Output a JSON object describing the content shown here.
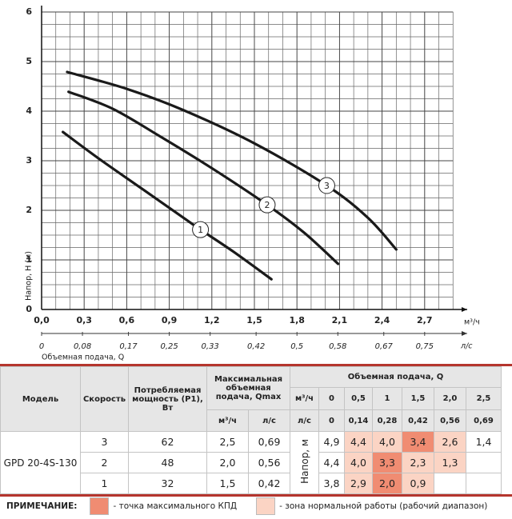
{
  "chart_data": {
    "type": "line",
    "y_label": "Напор, H (м)",
    "x_label": "Объемная подача, Q",
    "x_unit": "м³/ч",
    "x2_unit": "л/с",
    "xlim": [
      0,
      3.0
    ],
    "xticks": [
      {
        "value": 0,
        "label": "0,0"
      },
      {
        "value": 0.3,
        "label": "0,3"
      },
      {
        "value": 0.6,
        "label": "0,6"
      },
      {
        "value": 0.9,
        "label": "0,9"
      },
      {
        "value": 1.2,
        "label": "1,2"
      },
      {
        "value": 1.5,
        "label": "1,5"
      },
      {
        "value": 1.8,
        "label": "1,8"
      },
      {
        "value": 2.1,
        "label": "2,1"
      },
      {
        "value": 2.4,
        "label": "2,4"
      },
      {
        "value": 2.7,
        "label": "2,7"
      }
    ],
    "x2lim": [
      0,
      0.8333
    ],
    "x2ticks": [
      0,
      {
        "value": 0.08,
        "label": "0,08"
      },
      {
        "value": 0.17,
        "label": "0,17"
      },
      {
        "value": 0.25,
        "label": "0,25"
      },
      {
        "value": 0.33,
        "label": "0,33"
      },
      {
        "value": 0.42,
        "label": "0,42"
      },
      {
        "value": 0.5,
        "label": "0,5"
      },
      {
        "value": 0.58,
        "label": "0,58"
      },
      {
        "value": 0.67,
        "label": "0,67"
      },
      {
        "value": 0.75,
        "label": "0,75"
      }
    ],
    "ylim": [
      0,
      6
    ],
    "yticks": [
      0,
      1,
      2,
      3,
      4,
      5,
      6
    ],
    "grid": true,
    "series": [
      {
        "name": "1",
        "color": "#1a1a1a",
        "x": [
          0.15,
          0.4,
          0.7,
          1.0,
          1.12,
          1.35,
          1.62
        ],
        "values": [
          3.58,
          3.05,
          2.45,
          1.85,
          1.61,
          1.17,
          0.61
        ]
      },
      {
        "name": "2",
        "color": "#1a1a1a",
        "x": [
          0.19,
          0.5,
          0.83,
          1.2,
          1.59,
          1.85,
          2.09
        ],
        "values": [
          4.39,
          4.05,
          3.5,
          2.85,
          2.11,
          1.55,
          0.92
        ]
      },
      {
        "name": "3",
        "color": "#1a1a1a",
        "x": [
          0.18,
          0.6,
          1.0,
          1.5,
          2.01,
          2.3,
          2.5
        ],
        "values": [
          4.79,
          4.45,
          4.02,
          3.35,
          2.5,
          1.85,
          1.21
        ]
      }
    ]
  },
  "table": {
    "headers": {
      "model": "Модель",
      "speed": "Скорость",
      "power": "Потребляемая мощность (P1), Вт",
      "qmax": "Максимальная объемная подача, Qmax",
      "qmax_units": [
        "м³/ч",
        "л/с"
      ],
      "flow": "Объемная подача, Q",
      "flow_m3h": [
        "м³/ч",
        "0",
        "0,5",
        "1",
        "1,5",
        "2,0",
        "2,5"
      ],
      "flow_ls": [
        "л/с",
        "0",
        "0,14",
        "0,28",
        "0,42",
        "0,56",
        "0,69"
      ]
    },
    "model": "GPD 20-4S-130",
    "head_label": "Напор, м",
    "rows": [
      {
        "speed": "3",
        "power": "62",
        "qmax_m3h": "2,5",
        "qmax_ls": "0,69",
        "head": [
          {
            "text": "4,9"
          },
          {
            "text": "4,4",
            "color": "#fbd4c4"
          },
          {
            "text": "4,0",
            "color": "#fbd4c4"
          },
          {
            "text": "3,4",
            "color": "#f08c72"
          },
          {
            "text": "2,6",
            "color": "#fbd4c4"
          },
          {
            "text": "1,4"
          }
        ]
      },
      {
        "speed": "2",
        "power": "48",
        "qmax_m3h": "2,0",
        "qmax_ls": "0,56",
        "head": [
          {
            "text": "4,4"
          },
          {
            "text": "4,0",
            "color": "#fbd4c4"
          },
          {
            "text": "3,3",
            "color": "#f08c72"
          },
          {
            "text": "2,3",
            "color": "#fbd4c4"
          },
          {
            "text": "1,3",
            "color": "#fbd4c4"
          }
        ]
      },
      {
        "speed": "1",
        "power": "32",
        "qmax_m3h": "1,5",
        "qmax_ls": "0,42",
        "head": [
          {
            "text": "3,8"
          },
          {
            "text": "2,9",
            "color": "#fbd4c4"
          },
          {
            "text": "2,0",
            "color": "#f08c72"
          },
          {
            "text": "0,9",
            "color": "#fbd4c4"
          }
        ]
      }
    ]
  },
  "note": {
    "label": "ПРИМЕЧАНИЕ:",
    "items": [
      {
        "color": "#f08c72",
        "text": "- точка максимального КПД"
      },
      {
        "color": "#fbd4c4",
        "text": "- зона нормальной работы (рабочий диапазон)"
      }
    ]
  }
}
